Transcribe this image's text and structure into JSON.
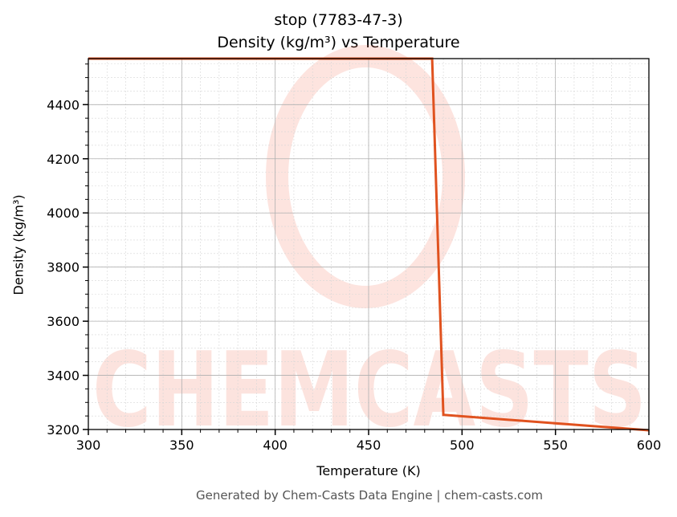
{
  "chart_data": {
    "type": "line",
    "title": "stop (7783-47-3)",
    "subtitle": "Density (kg/m³) vs Temperature",
    "xlabel": "Temperature (K)",
    "ylabel": "Density (kg/m³)",
    "xlim": [
      300,
      600
    ],
    "ylim": [
      3200,
      4570
    ],
    "xticks": [
      300,
      350,
      400,
      450,
      500,
      550,
      600
    ],
    "yticks": [
      3200,
      3400,
      3600,
      3800,
      4000,
      4200,
      4400
    ],
    "grid": true,
    "series": [
      {
        "name": "Density",
        "color": "#e0521f",
        "x": [
          300,
          484,
          490,
          600
        ],
        "y": [
          4570,
          4570,
          3254,
          3197
        ]
      }
    ],
    "watermark": "CHEMCASTS",
    "footer": "Generated by Chem-Casts Data Engine | chem-casts.com"
  }
}
